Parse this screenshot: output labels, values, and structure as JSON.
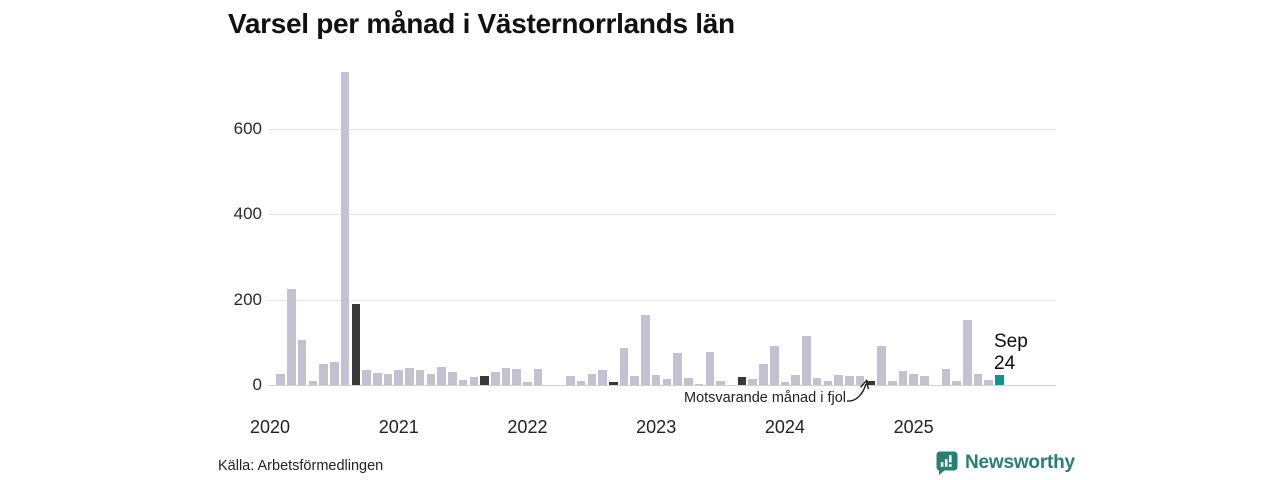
{
  "title": "Varsel per månad i Västernorrlands län",
  "source_label": "Källa: Arbetsförmedlingen",
  "brand": {
    "name": "Newsworthy",
    "color": "#2a7f74",
    "icon": "newsworthy-chart-bubble-icon"
  },
  "annotation": {
    "text": "Motsvarande månad i fjol",
    "target_month": "2024-09"
  },
  "current_point_label": {
    "month": "Sep",
    "value": "24"
  },
  "chart_data": {
    "type": "bar",
    "title": "Varsel per månad i Västernorrlands län",
    "xlabel": "",
    "ylabel": "",
    "x_unit": "month",
    "x_range": [
      "2020-01",
      "2025-09"
    ],
    "x_tick_labels": [
      "2020",
      "2021",
      "2022",
      "2023",
      "2024",
      "2025"
    ],
    "y_ticks": [
      0,
      200,
      400,
      600
    ],
    "ylim": [
      0,
      760
    ],
    "grid": "horizontal",
    "legend": "none",
    "colors": {
      "default": "#c4c2d2",
      "september_highlight": "#39393b",
      "current_month": "#0d968a"
    },
    "highlight_rules": {
      "september": "dark bar (same month in previous years)",
      "last_point": "teal bar (Sep 24, current month)"
    },
    "series": [
      {
        "name": "Varsel per månad",
        "months": [
          "2020-01",
          "2020-02",
          "2020-03",
          "2020-04",
          "2020-05",
          "2020-06",
          "2020-07",
          "2020-08",
          "2020-09",
          "2020-10",
          "2020-11",
          "2020-12",
          "2021-01",
          "2021-02",
          "2021-03",
          "2021-04",
          "2021-05",
          "2021-06",
          "2021-07",
          "2021-08",
          "2021-09",
          "2021-10",
          "2021-11",
          "2021-12",
          "2022-01",
          "2022-02",
          "2022-03",
          "2022-04",
          "2022-05",
          "2022-06",
          "2022-07",
          "2022-08",
          "2022-09",
          "2022-10",
          "2022-11",
          "2022-12",
          "2023-01",
          "2023-02",
          "2023-03",
          "2023-04",
          "2023-05",
          "2023-06",
          "2023-07",
          "2023-08",
          "2023-09",
          "2023-10",
          "2023-11",
          "2023-12",
          "2024-01",
          "2024-02",
          "2024-03",
          "2024-04",
          "2024-05",
          "2024-06",
          "2024-07",
          "2024-08",
          "2024-09",
          "2024-10",
          "2024-11",
          "2024-12",
          "2025-01",
          "2025-02",
          "2025-03",
          "2025-04",
          "2025-05",
          "2025-06",
          "2025-07",
          "2025-08",
          "2025-09"
        ],
        "values": [
          0,
          26,
          225,
          105,
          10,
          50,
          55,
          733,
          190,
          35,
          28,
          25,
          35,
          40,
          35,
          25,
          42,
          30,
          12,
          19,
          22,
          31,
          39,
          38,
          8,
          37,
          0,
          0,
          20,
          10,
          26,
          35,
          7,
          86,
          22,
          165,
          24,
          14,
          75,
          17,
          3,
          77,
          10,
          0,
          18,
          14,
          50,
          91,
          8,
          24,
          114,
          16,
          10,
          24,
          22,
          20,
          9,
          92,
          10,
          32,
          25,
          22,
          0,
          38,
          10,
          153,
          25,
          12,
          24
        ]
      }
    ]
  }
}
